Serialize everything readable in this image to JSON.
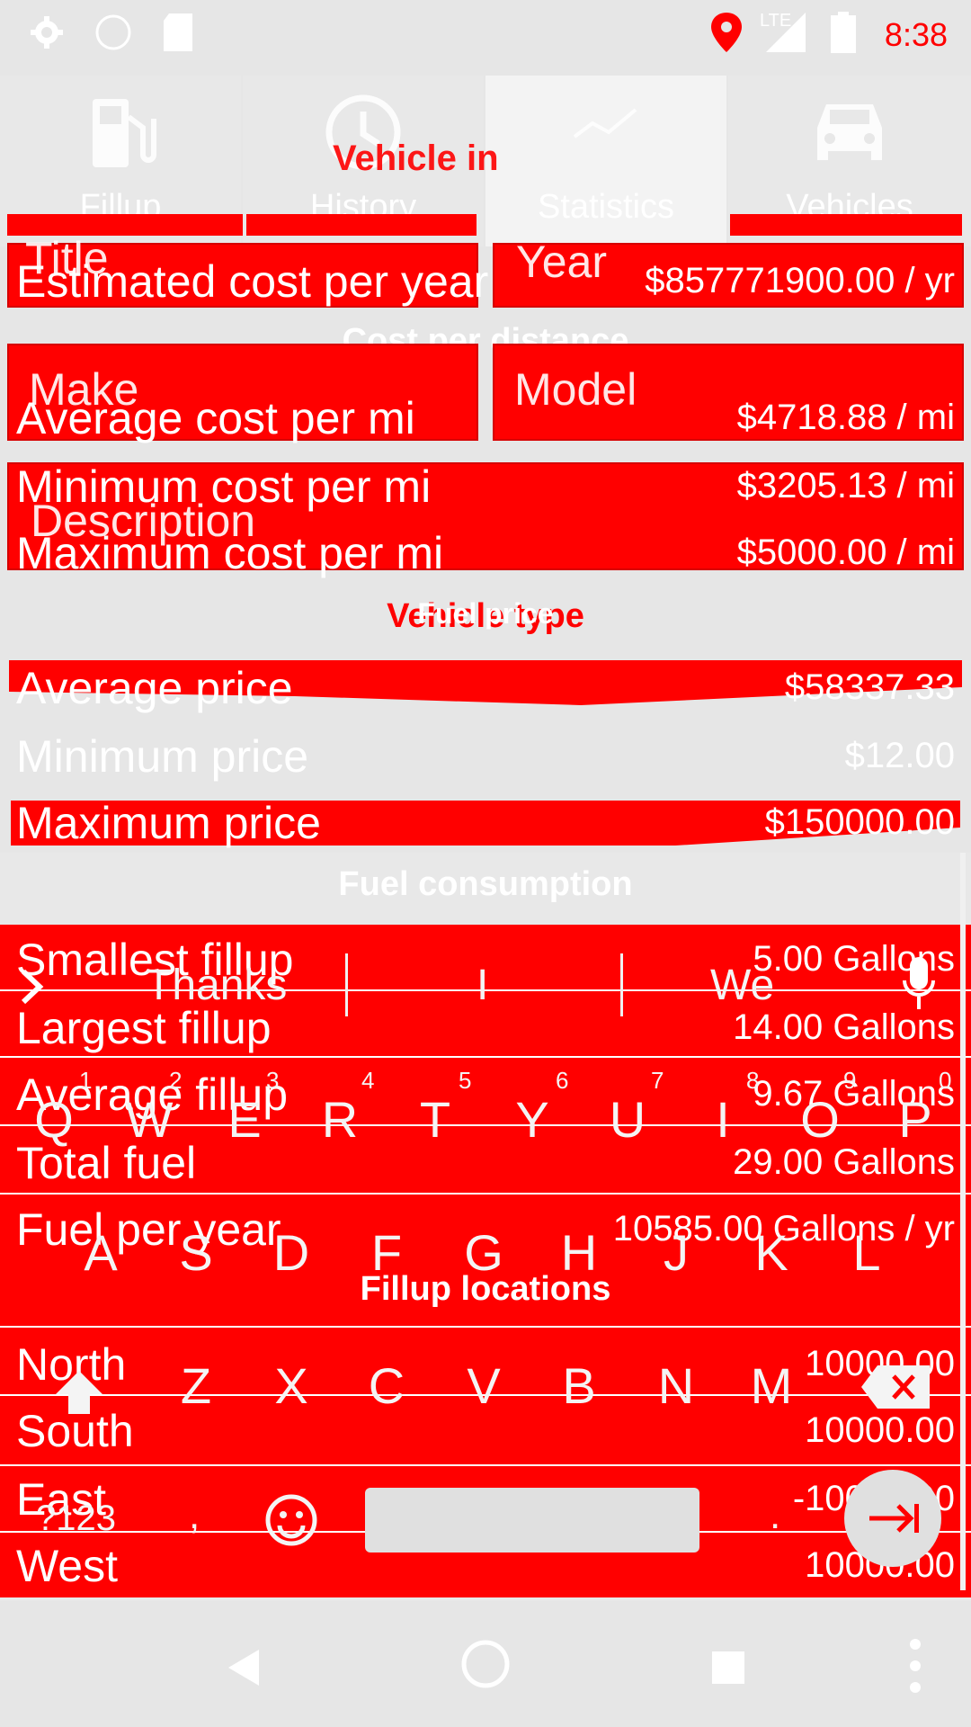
{
  "status_bar": {
    "time": "8:38",
    "network": "LTE",
    "icons": [
      "gear-icon",
      "circle-icon",
      "sd-card-icon",
      "location-pin-icon",
      "signal-icon",
      "battery-icon"
    ]
  },
  "tabs": [
    {
      "label": "Fillup",
      "icon": "fuel-pump-icon",
      "active": false
    },
    {
      "label": "History",
      "icon": "clock-icon",
      "active": false
    },
    {
      "label": "Statistics",
      "icon": "chart-icon",
      "active": true
    },
    {
      "label": "Vehicles",
      "icon": "car-icon",
      "active": false
    }
  ],
  "ghost_form": {
    "heading": "Vehicle in",
    "title_label": "Title",
    "year_label": "Year",
    "make_label": "Make",
    "model_label": "Model",
    "description_label": "Description",
    "vehicle_type_label": "Vehicle type"
  },
  "stats": {
    "estimated_cost_label": "Estimated cost per year",
    "estimated_cost_value": "$857771900.00 / yr",
    "cost_per_distance_header": "Cost per distance",
    "avg_cost_label": "Average cost per mi",
    "avg_cost_value": "$4718.88 / mi",
    "min_cost_label": "Minimum cost per mi",
    "min_cost_value": "$3205.13 / mi",
    "max_cost_label": "Maximum cost per mi",
    "max_cost_value": "$5000.00 / mi",
    "fuel_price_header": "Fuel price",
    "avg_price_label": "Average price",
    "avg_price_value": "$58337.33",
    "min_price_label": "Minimum price",
    "min_price_value": "$12.00",
    "max_price_label": "Maximum price",
    "max_price_value": "$150000.00",
    "fuel_consumption_header": "Fuel consumption",
    "smallest_fillup_label": "Smallest fillup",
    "smallest_fillup_value": "5.00 Gallons",
    "largest_fillup_label": "Largest fillup",
    "largest_fillup_value": "14.00 Gallons",
    "average_fillup_label": "Average fillup",
    "average_fillup_value": "9.67 Gallons",
    "total_fuel_label": "Total fuel",
    "total_fuel_value": "29.00 Gallons",
    "fuel_per_year_label": "Fuel per year",
    "fuel_per_year_value": "10585.00 Gallons / yr",
    "fillup_locations_header": "Fillup locations",
    "north_label": "North",
    "north_value": "10000.00",
    "south_label": "South",
    "south_value": "10000.00",
    "east_label": "East",
    "east_value": "-10000.00",
    "west_label": "West",
    "west_value": "10000.00"
  },
  "keyboard": {
    "suggestions": [
      "Thanks",
      "I",
      "We"
    ],
    "row1": [
      "Q",
      "W",
      "E",
      "R",
      "T",
      "Y",
      "U",
      "I",
      "O",
      "P"
    ],
    "digits": [
      "1",
      "2",
      "3",
      "4",
      "5",
      "6",
      "7",
      "8",
      "9",
      "0"
    ],
    "row2": [
      "A",
      "S",
      "D",
      "F",
      "G",
      "H",
      "J",
      "K",
      "L"
    ],
    "row3": [
      "Z",
      "X",
      "C",
      "V",
      "B",
      "N",
      "M"
    ],
    "symbols_key": "?123",
    "comma_key": ",",
    "period_key": "."
  }
}
